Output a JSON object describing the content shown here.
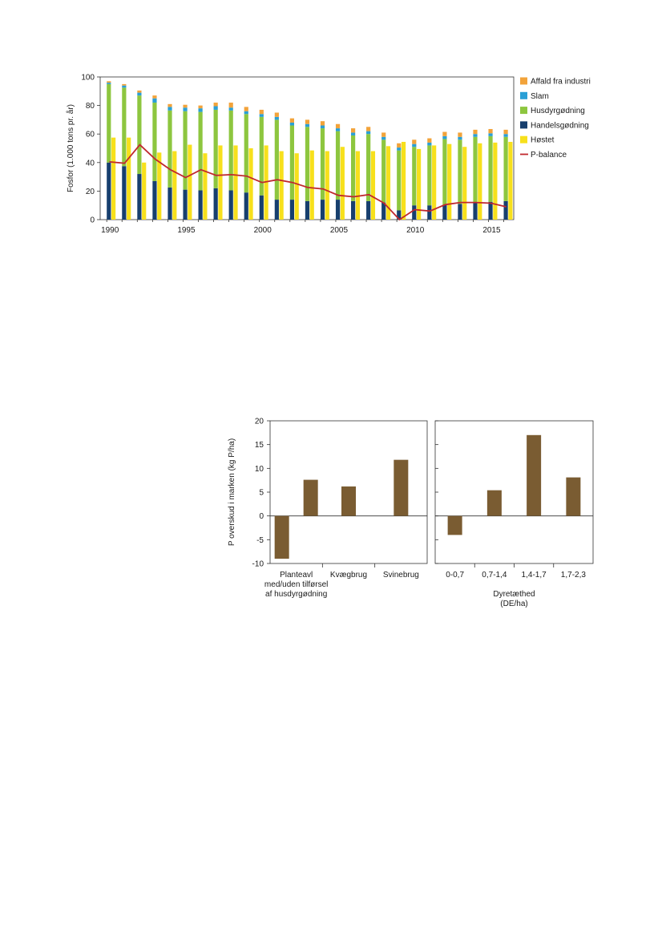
{
  "chart_data": [
    {
      "type": "bar",
      "subtype": "stacked-bar-with-side-bar-and-line",
      "ylabel": "Fosfor (1.000 tons pr. år)",
      "xlabel": "",
      "ylim": [
        0,
        100
      ],
      "y_ticks": [
        "0",
        "20",
        "40",
        "60",
        "80",
        "100"
      ],
      "x_tick_labels": [
        "1990",
        "1995",
        "2000",
        "2005",
        "2010",
        "2015"
      ],
      "years": [
        1990,
        1991,
        1992,
        1993,
        1994,
        1995,
        1996,
        1997,
        1998,
        1999,
        2000,
        2001,
        2002,
        2003,
        2004,
        2005,
        2006,
        2007,
        2008,
        2009,
        2010,
        2011,
        2012,
        2013,
        2014,
        2015,
        2016
      ],
      "legend_position": "right",
      "colors": {
        "affald": "#f2a33a",
        "slam": "#2a9fd6",
        "husdyr": "#8dc63f",
        "handels": "#173f6e",
        "hostet": "#f7e01c",
        "pbalance": "#c0282d"
      },
      "legend": [
        {
          "key": "affald",
          "label": "Affald fra industri"
        },
        {
          "key": "slam",
          "label": "Slam"
        },
        {
          "key": "husdyr",
          "label": "Husdyrgødning"
        },
        {
          "key": "handels",
          "label": "Handelsgødning"
        },
        {
          "key": "hostet",
          "label": "Høstet"
        },
        {
          "key": "pbalance",
          "label": "P-balance"
        }
      ],
      "stacked_series": [
        {
          "key": "handels",
          "values": [
            40,
            37.5,
            32,
            27,
            22.5,
            21,
            20.5,
            22,
            20.5,
            19,
            17,
            14,
            14,
            13,
            14,
            14,
            13,
            13,
            12,
            6.5,
            10,
            10,
            10.5,
            11,
            12,
            12.5,
            13
          ]
        },
        {
          "key": "husdyr",
          "values": [
            55,
            55,
            55,
            55,
            54,
            55,
            55,
            55,
            56,
            55,
            55,
            56,
            52,
            52,
            50,
            48,
            46,
            47,
            44,
            42,
            41,
            42,
            46,
            45,
            46,
            46,
            45
          ]
        },
        {
          "key": "slam",
          "values": [
            1,
            1.5,
            2,
            3,
            2.5,
            2.5,
            2.5,
            2.5,
            2,
            2,
            2,
            2,
            2,
            2,
            2,
            2,
            2,
            2,
            2,
            2,
            2,
            2,
            2,
            2,
            2,
            2,
            2
          ]
        },
        {
          "key": "affald",
          "values": [
            1,
            1,
            1.5,
            2,
            2,
            2,
            2,
            2.5,
            3.5,
            3,
            3,
            3,
            3,
            3,
            3,
            3,
            3,
            3,
            3,
            3,
            3,
            3,
            3,
            3,
            3,
            3,
            3
          ]
        }
      ],
      "side_series": {
        "key": "hostet",
        "values": [
          57.5,
          57.5,
          40,
          47,
          48,
          52.5,
          46.5,
          52,
          52,
          50,
          52,
          48,
          46.5,
          48.5,
          48,
          51,
          48,
          48,
          51.5,
          54.5,
          49.5,
          52,
          53,
          51,
          53.5,
          54,
          54.5
        ]
      },
      "line_series": {
        "key": "pbalance",
        "values": [
          40.5,
          39.5,
          52.5,
          42.5,
          35,
          29.5,
          35,
          31,
          31.5,
          30.5,
          26,
          28,
          26,
          22.5,
          21.5,
          17,
          16,
          17.5,
          11.5,
          0,
          7,
          6,
          10.5,
          12,
          12,
          11.5,
          9
        ]
      }
    },
    {
      "type": "bar",
      "ylabel": "P overskud i marken (kg P/ha)",
      "ylim": [
        -10,
        20
      ],
      "y_ticks": [
        "-10",
        "-5",
        "0",
        "5",
        "10",
        "15",
        "20"
      ],
      "color": "#7a5c32",
      "panels": [
        {
          "xlabel": "",
          "categories": [
            {
              "lines": [
                "Planteavl",
                "med/uden tilførsel",
                "af husdyrgødning"
              ],
              "values": [
                -9,
                7.6
              ]
            },
            {
              "lines": [
                "Kvægbrug"
              ],
              "values": [
                6.2
              ]
            },
            {
              "lines": [
                "Svinebrug"
              ],
              "values": [
                11.8
              ]
            }
          ]
        },
        {
          "xlabel_lines": [
            "Dyretæthed",
            "(DE/ha)"
          ],
          "categories": [
            {
              "lines": [
                "0-0,7"
              ],
              "values": [
                -4
              ]
            },
            {
              "lines": [
                "0,7-1,4"
              ],
              "values": [
                5.4
              ]
            },
            {
              "lines": [
                "1,4-1,7"
              ],
              "values": [
                17
              ]
            },
            {
              "lines": [
                "1,7-2,3"
              ],
              "values": [
                8.1
              ]
            }
          ]
        }
      ]
    }
  ]
}
